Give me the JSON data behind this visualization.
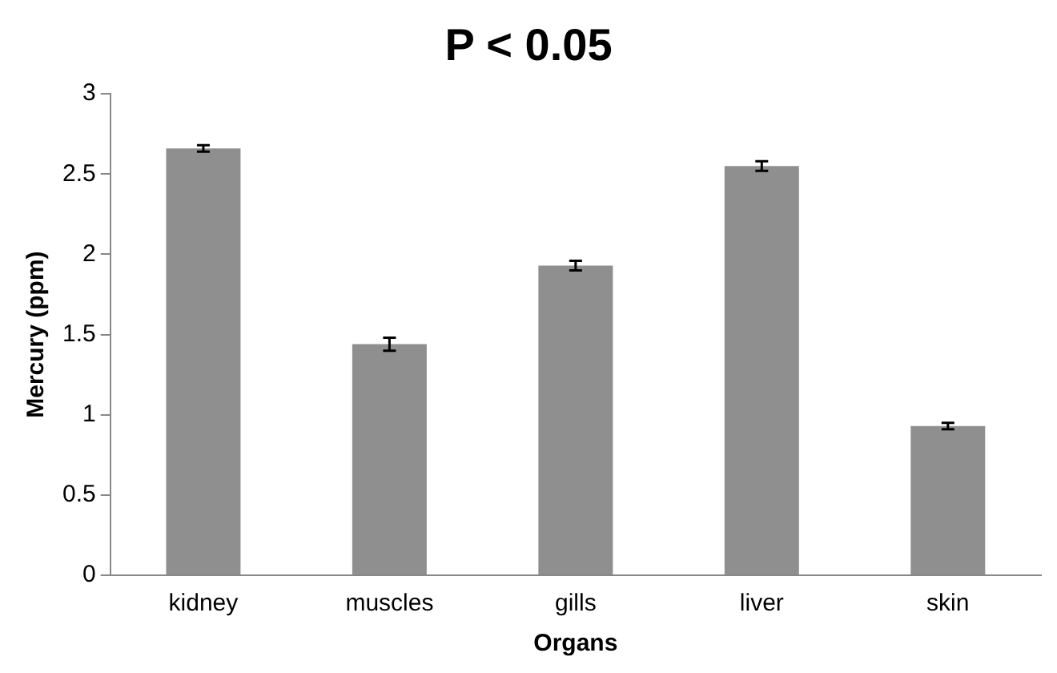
{
  "chart_data": {
    "type": "bar",
    "title": "P < 0.05",
    "xlabel": "Organs",
    "ylabel": "Mercury (ppm)",
    "categories": [
      "kidney",
      "muscles",
      "gills",
      "liver",
      "skin"
    ],
    "values": [
      2.66,
      1.44,
      1.93,
      2.55,
      0.93
    ],
    "errors": [
      0.02,
      0.04,
      0.03,
      0.03,
      0.02
    ],
    "color": "#8f8f8f",
    "ylim": [
      0,
      3
    ],
    "yticks": [
      0,
      0.5,
      1,
      1.5,
      2,
      2.5,
      3
    ],
    "grid": false,
    "legend": false
  }
}
